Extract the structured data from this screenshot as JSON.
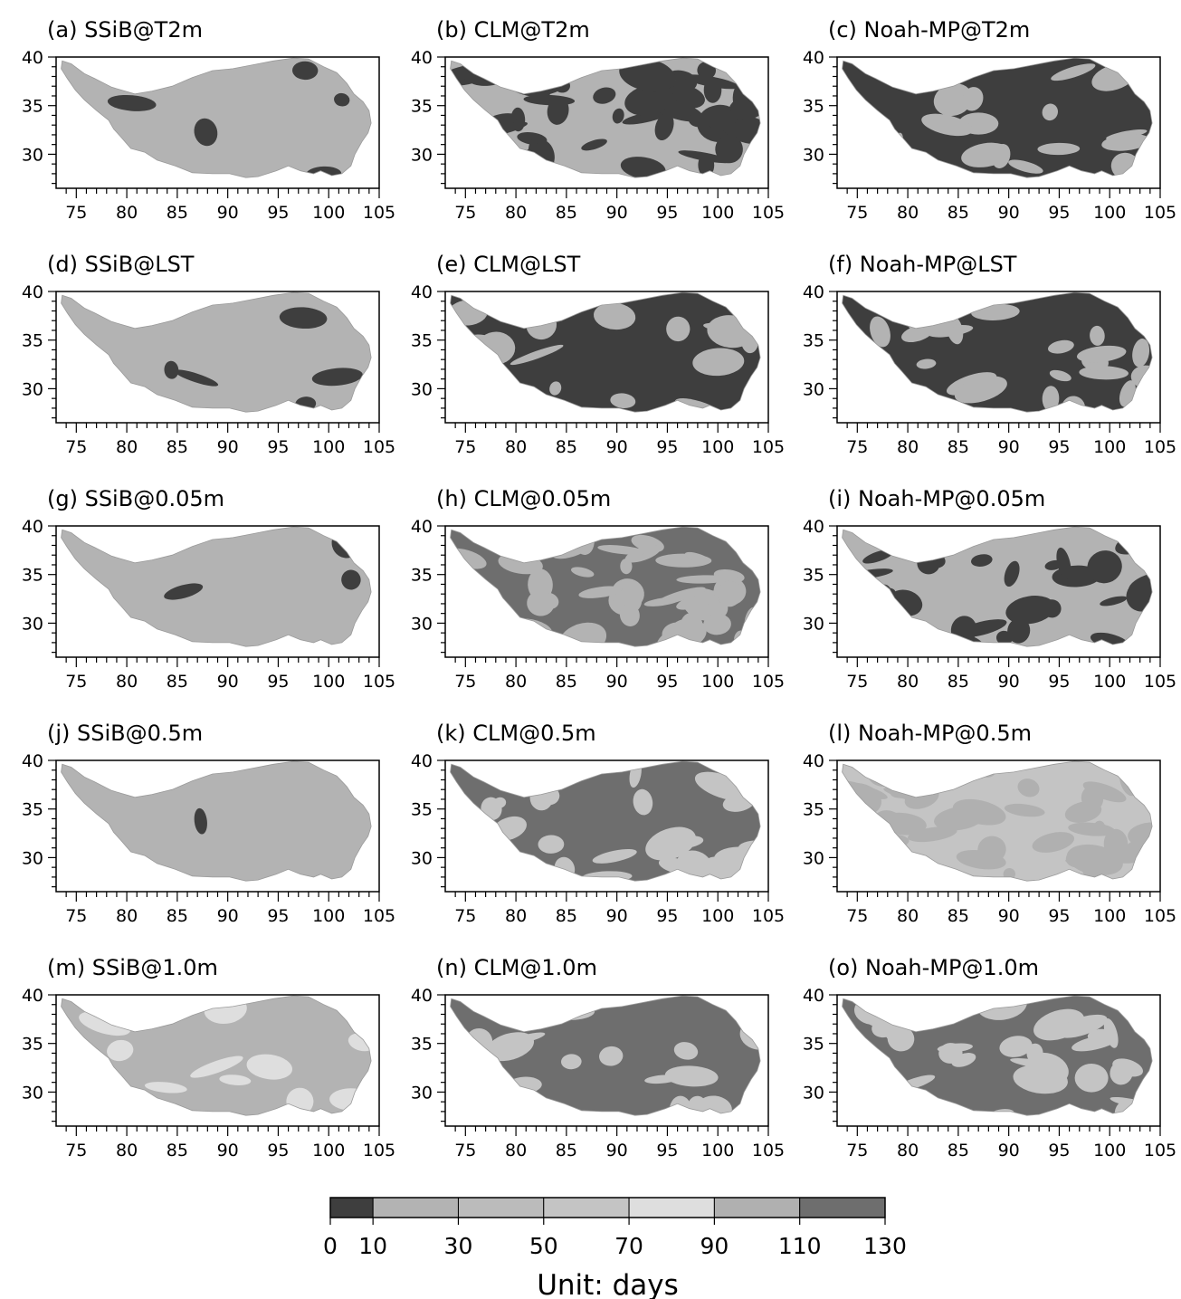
{
  "figure": {
    "panels": [
      {
        "label": "(a) SSiB@T2m",
        "dominant_class": 1,
        "secondary_class": 0,
        "coverage": 0.05,
        "seed": 11
      },
      {
        "label": "(b) CLM@T2m",
        "dominant_class": 1,
        "secondary_class": 0,
        "coverage": 0.55,
        "seed": 12
      },
      {
        "label": "(c) Noah-MP@T2m",
        "dominant_class": 0,
        "secondary_class": 1,
        "coverage": 0.22,
        "seed": 13
      },
      {
        "label": "(d) SSiB@LST",
        "dominant_class": 1,
        "secondary_class": 0,
        "coverage": 0.05,
        "seed": 14
      },
      {
        "label": "(e) CLM@LST",
        "dominant_class": 0,
        "secondary_class": 1,
        "coverage": 0.22,
        "seed": 15
      },
      {
        "label": "(f) Noah-MP@LST",
        "dominant_class": 0,
        "secondary_class": 1,
        "coverage": 0.25,
        "seed": 16
      },
      {
        "label": "(g) SSiB@0.05m",
        "dominant_class": 1,
        "secondary_class": 0,
        "coverage": 0.04,
        "seed": 17
      },
      {
        "label": "(h) CLM@0.05m",
        "dominant_class": 6,
        "secondary_class": 1,
        "coverage": 0.45,
        "seed": 18
      },
      {
        "label": "(i) Noah-MP@0.05m",
        "dominant_class": 1,
        "secondary_class": 0,
        "coverage": 0.35,
        "seed": 19
      },
      {
        "label": "(j) SSiB@0.5m",
        "dominant_class": 1,
        "secondary_class": 0,
        "coverage": 0.01,
        "seed": 20
      },
      {
        "label": "(k) CLM@0.5m",
        "dominant_class": 6,
        "secondary_class": 3,
        "coverage": 0.3,
        "seed": 21
      },
      {
        "label": "(l) Noah-MP@0.5m",
        "dominant_class": 3,
        "secondary_class": 5,
        "coverage": 0.45,
        "seed": 22
      },
      {
        "label": "(m) SSiB@1.0m",
        "dominant_class": 1,
        "secondary_class": 4,
        "coverage": 0.12,
        "seed": 23
      },
      {
        "label": "(n) CLM@1.0m",
        "dominant_class": 6,
        "secondary_class": 3,
        "coverage": 0.2,
        "seed": 24
      },
      {
        "label": "(o) Noah-MP@1.0m",
        "dominant_class": 6,
        "secondary_class": 3,
        "coverage": 0.35,
        "seed": 25
      }
    ],
    "x_axis": {
      "range": [
        73,
        105
      ],
      "ticks": [
        "75",
        "80",
        "85",
        "90",
        "95",
        "100",
        "105"
      ]
    },
    "y_axis": {
      "range": [
        26.5,
        40
      ],
      "ticks": [
        "40",
        "35",
        "30"
      ]
    },
    "colorbar": {
      "title": "Unit: days",
      "tick_labels": [
        "0",
        "10",
        "30",
        "50",
        "70",
        "90",
        "110",
        "130"
      ],
      "bins": [
        {
          "from": 0,
          "to": 10,
          "color": "#3e3e3e"
        },
        {
          "from": 10,
          "to": 30,
          "color": "#b3b3b3"
        },
        {
          "from": 30,
          "to": 50,
          "color": "#bbbbbb"
        },
        {
          "from": 50,
          "to": 70,
          "color": "#c4c4c4"
        },
        {
          "from": 70,
          "to": 90,
          "color": "#dedede"
        },
        {
          "from": 90,
          "to": 110,
          "color": "#b0b0b0"
        },
        {
          "from": 110,
          "to": 130,
          "color": "#6e6e6e"
        }
      ]
    }
  }
}
